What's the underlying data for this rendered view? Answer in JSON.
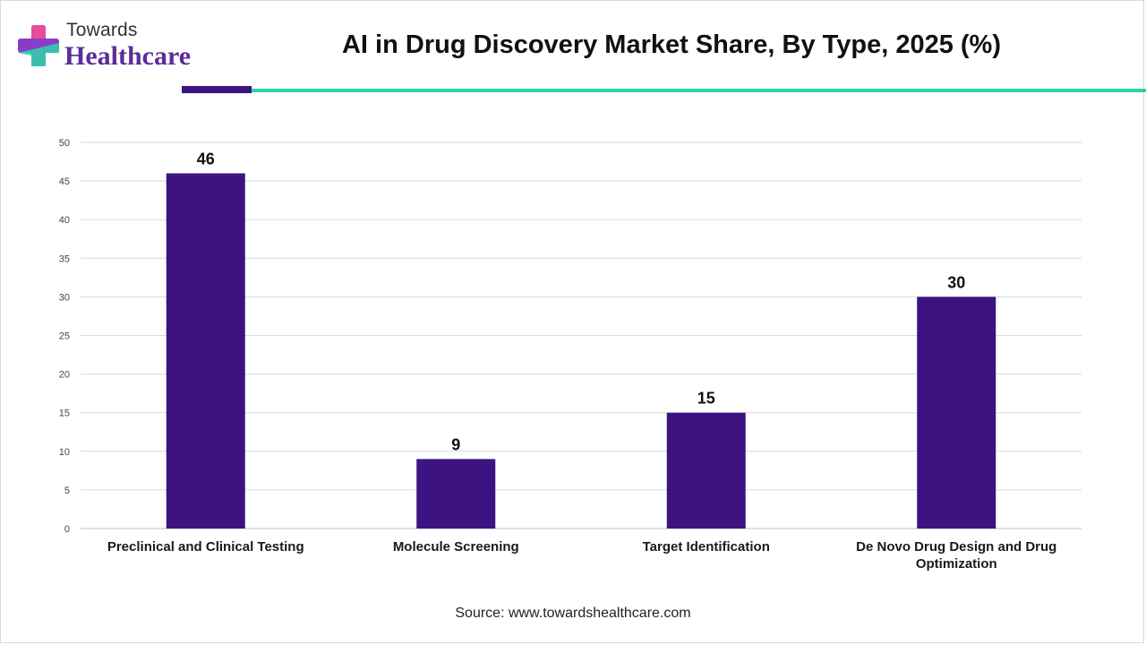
{
  "brand": {
    "line1": "Towards",
    "line2": "Healthcare",
    "colors": {
      "accent": "#5b2d99",
      "cross_top": "#e64e9a",
      "cross_mid": "#8a3cc9",
      "cross_bottom": "#2dd4a8"
    }
  },
  "header": {
    "title": "AI in Drug Discovery Market Share, By Type, 2025 (%)"
  },
  "colors": {
    "bar": "#3d1381",
    "rule_purple": "#3d1381",
    "rule_teal": "#2dd4a8",
    "grid": "#d9d9d9"
  },
  "chart_data": {
    "type": "bar",
    "title": "AI in Drug Discovery Market Share, By Type, 2025 (%)",
    "categories": [
      [
        "Preclinical and Clinical Testing"
      ],
      [
        "Molecule Screening"
      ],
      [
        "Target Identification"
      ],
      [
        "De Novo Drug Design and Drug",
        "Optimization"
      ]
    ],
    "values": [
      46,
      9,
      15,
      30
    ],
    "ylim": [
      0,
      50
    ],
    "yticks": [
      0,
      5,
      10,
      15,
      20,
      25,
      30,
      35,
      40,
      45,
      50
    ],
    "xlabel": "",
    "ylabel": "",
    "grid": true,
    "data_labels": true,
    "legend": "none"
  },
  "footer": {
    "source": "Source: www.towardshealthcare.com"
  }
}
